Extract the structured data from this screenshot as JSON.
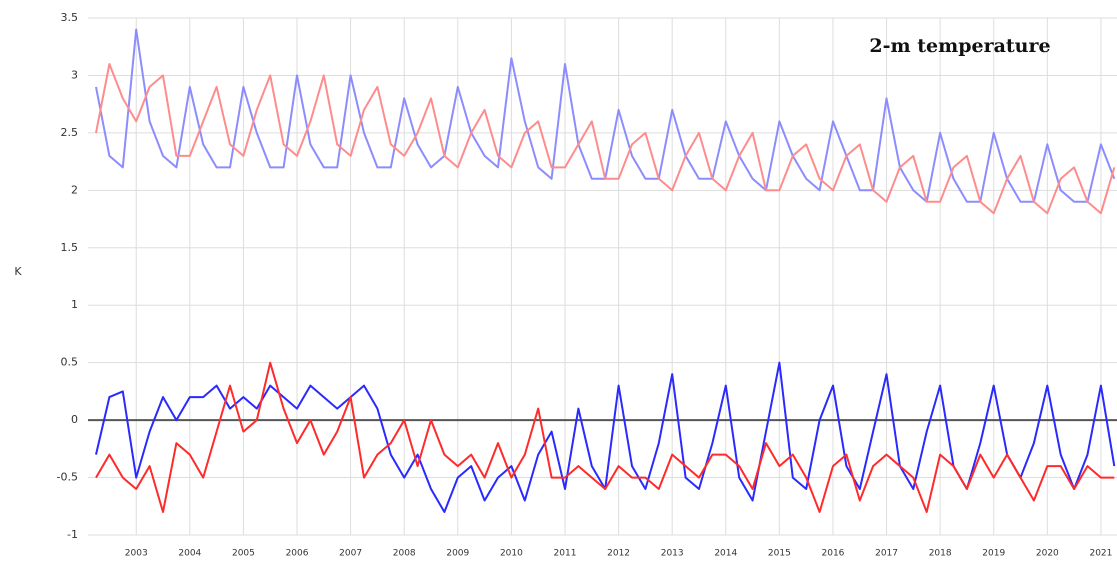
{
  "chart_data": {
    "type": "line",
    "title": "2-m temperature",
    "ylabel": "K",
    "x": [
      2002.25,
      2002.5,
      2002.75,
      2003,
      2003.25,
      2003.5,
      2003.75,
      2004,
      2004.25,
      2004.5,
      2004.75,
      2005,
      2005.25,
      2005.5,
      2005.75,
      2006,
      2006.25,
      2006.5,
      2006.75,
      2007,
      2007.25,
      2007.5,
      2007.75,
      2008,
      2008.25,
      2008.5,
      2008.75,
      2009,
      2009.25,
      2009.5,
      2009.75,
      2010,
      2010.25,
      2010.5,
      2010.75,
      2011,
      2011.25,
      2011.5,
      2011.75,
      2012,
      2012.25,
      2012.5,
      2012.75,
      2013,
      2013.25,
      2013.5,
      2013.75,
      2014,
      2014.25,
      2014.5,
      2014.75,
      2015,
      2015.25,
      2015.5,
      2015.75,
      2016,
      2016.25,
      2016.5,
      2016.75,
      2017,
      2017.25,
      2017.5,
      2017.75,
      2018,
      2018.25,
      2018.5,
      2018.75,
      2019,
      2019.25,
      2019.5,
      2019.75,
      2020,
      2020.25,
      2020.5,
      2020.75,
      2021,
      2021.25
    ],
    "series": [
      {
        "color": "#8c8cff",
        "values": [
          2.9,
          2.3,
          2.2,
          3.4,
          2.6,
          2.3,
          2.2,
          2.9,
          2.4,
          2.2,
          2.2,
          2.9,
          2.5,
          2.2,
          2.2,
          3.0,
          2.4,
          2.2,
          2.2,
          3.0,
          2.5,
          2.2,
          2.2,
          2.8,
          2.4,
          2.2,
          2.3,
          2.9,
          2.5,
          2.3,
          2.2,
          3.15,
          2.6,
          2.2,
          2.1,
          3.1,
          2.4,
          2.1,
          2.1,
          2.7,
          2.3,
          2.1,
          2.1,
          2.7,
          2.3,
          2.1,
          2.1,
          2.6,
          2.3,
          2.1,
          2.0,
          2.6,
          2.3,
          2.1,
          2.0,
          2.6,
          2.3,
          2.0,
          2.0,
          2.8,
          2.2,
          2.0,
          1.9,
          2.5,
          2.1,
          1.9,
          1.9,
          2.5,
          2.1,
          1.9,
          1.9,
          2.4,
          2.0,
          1.9,
          1.9,
          2.4,
          2.1
        ]
      },
      {
        "color": "#ff8c8c",
        "values": [
          2.5,
          3.1,
          2.8,
          2.6,
          2.9,
          3.0,
          2.3,
          2.3,
          2.6,
          2.9,
          2.4,
          2.3,
          2.7,
          3.0,
          2.4,
          2.3,
          2.6,
          3.0,
          2.4,
          2.3,
          2.7,
          2.9,
          2.4,
          2.3,
          2.5,
          2.8,
          2.3,
          2.2,
          2.5,
          2.7,
          2.3,
          2.2,
          2.5,
          2.6,
          2.2,
          2.2,
          2.4,
          2.6,
          2.1,
          2.1,
          2.4,
          2.5,
          2.1,
          2.0,
          2.3,
          2.5,
          2.1,
          2.0,
          2.3,
          2.5,
          2.0,
          2.0,
          2.3,
          2.4,
          2.1,
          2.0,
          2.3,
          2.4,
          2.0,
          1.9,
          2.2,
          2.3,
          1.9,
          1.9,
          2.2,
          2.3,
          1.9,
          1.8,
          2.1,
          2.3,
          1.9,
          1.8,
          2.1,
          2.2,
          1.9,
          1.8,
          2.2
        ]
      },
      {
        "color": "#2a2aff",
        "values": [
          -0.3,
          0.2,
          0.25,
          -0.5,
          -0.1,
          0.2,
          0.0,
          0.2,
          0.2,
          0.3,
          0.1,
          0.2,
          0.1,
          0.3,
          0.2,
          0.1,
          0.3,
          0.2,
          0.1,
          0.2,
          0.3,
          0.1,
          -0.3,
          -0.5,
          -0.3,
          -0.6,
          -0.8,
          -0.5,
          -0.4,
          -0.7,
          -0.5,
          -0.4,
          -0.7,
          -0.3,
          -0.1,
          -0.6,
          0.1,
          -0.4,
          -0.6,
          0.3,
          -0.4,
          -0.6,
          -0.2,
          0.4,
          -0.5,
          -0.6,
          -0.2,
          0.3,
          -0.5,
          -0.7,
          -0.1,
          0.5,
          -0.5,
          -0.6,
          0.0,
          0.3,
          -0.4,
          -0.6,
          -0.1,
          0.4,
          -0.4,
          -0.6,
          -0.1,
          0.3,
          -0.4,
          -0.6,
          -0.2,
          0.3,
          -0.3,
          -0.5,
          -0.2,
          0.3,
          -0.3,
          -0.6,
          -0.3,
          0.3,
          -0.4
        ]
      },
      {
        "color": "#ff2a2a",
        "values": [
          -0.5,
          -0.3,
          -0.5,
          -0.6,
          -0.4,
          -0.8,
          -0.2,
          -0.3,
          -0.5,
          -0.1,
          0.3,
          -0.1,
          0.0,
          0.5,
          0.1,
          -0.2,
          0.0,
          -0.3,
          -0.1,
          0.2,
          -0.5,
          -0.3,
          -0.2,
          0.0,
          -0.4,
          0.0,
          -0.3,
          -0.4,
          -0.3,
          -0.5,
          -0.2,
          -0.5,
          -0.3,
          0.1,
          -0.5,
          -0.5,
          -0.4,
          -0.5,
          -0.6,
          -0.4,
          -0.5,
          -0.5,
          -0.6,
          -0.3,
          -0.4,
          -0.5,
          -0.3,
          -0.3,
          -0.4,
          -0.6,
          -0.2,
          -0.4,
          -0.3,
          -0.5,
          -0.8,
          -0.4,
          -0.3,
          -0.7,
          -0.4,
          -0.3,
          -0.4,
          -0.5,
          -0.8,
          -0.3,
          -0.4,
          -0.6,
          -0.3,
          -0.5,
          -0.3,
          -0.5,
          -0.7,
          -0.4,
          -0.4,
          -0.6,
          -0.4,
          -0.5,
          -0.5
        ]
      }
    ],
    "xlim": [
      2002.1,
      2021.3
    ],
    "xticks": [
      2003,
      2004,
      2005,
      2006,
      2007,
      2008,
      2009,
      2010,
      2011,
      2012,
      2013,
      2014,
      2015,
      2016,
      2017,
      2018,
      2019,
      2020,
      2021
    ],
    "ylim": [
      -1,
      3.5
    ],
    "yticks": [
      -1,
      -0.5,
      0,
      0.5,
      1,
      1.5,
      2,
      2.5,
      3,
      3.5
    ],
    "grid": true
  }
}
